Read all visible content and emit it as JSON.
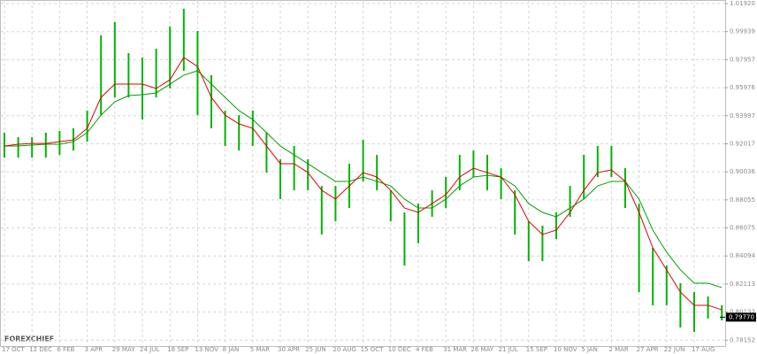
{
  "chart_data": {
    "type": "hilo",
    "watermark": "FOREXCHIEF",
    "categories": [
      "17 OCT",
      null,
      "12 DEC",
      null,
      "6 FEB",
      null,
      "3 APR",
      null,
      "29 MAY",
      null,
      "24 JUL",
      null,
      "18 SEP",
      null,
      "13 NOV",
      null,
      "8 JAN",
      null,
      "5 MAR",
      null,
      "30 APR",
      null,
      "25 JUN",
      null,
      "20 AUG",
      null,
      "15 OCT",
      null,
      "10 DEC",
      null,
      "4 FEB",
      null,
      "31 MAR",
      null,
      "26 MAY",
      null,
      "21 JUL",
      null,
      "15 SEP",
      null,
      "10 NOV",
      null,
      "5 JAN",
      null,
      "2 MAR",
      null,
      "27 APR",
      null,
      "22 JUN",
      null,
      "17 AUG",
      null,
      null
    ],
    "high": [
      0.928,
      0.9248,
      0.9248,
      0.928,
      0.9292,
      0.9311,
      0.9436,
      0.9967,
      1.0061,
      0.9842,
      0.9811,
      0.9873,
      1.003,
      1.0155,
      0.9998,
      0.9686,
      0.9436,
      0.9404,
      0.9436,
      0.928,
      0.9092,
      0.9186,
      0.9092,
      0.8904,
      0.8904,
      0.9061,
      0.9229,
      0.9123,
      0.8873,
      0.8717,
      0.8779,
      0.8873,
      0.8967,
      0.9123,
      0.9154,
      0.9123,
      0.9029,
      0.8873,
      0.8654,
      0.8623,
      0.8717,
      0.8904,
      0.9123,
      0.9186,
      0.9186,
      0.9029,
      0.8779,
      0.8467,
      0.8342,
      0.8217,
      0.8154,
      0.8123,
      0.8061
    ],
    "low": [
      0.9104,
      0.9104,
      0.9104,
      0.9104,
      0.9123,
      0.9154,
      0.9217,
      0.9404,
      0.9529,
      0.9529,
      0.9373,
      0.9529,
      0.9592,
      0.9717,
      0.9404,
      0.9311,
      0.9186,
      0.9154,
      0.9186,
      0.8998,
      0.8811,
      0.8873,
      0.8873,
      0.8561,
      0.8654,
      0.8748,
      0.8936,
      0.8873,
      0.8654,
      0.8342,
      0.8498,
      0.8686,
      0.8748,
      0.8873,
      0.8967,
      0.8873,
      0.8811,
      0.8561,
      0.8373,
      0.8373,
      0.8529,
      0.8686,
      0.8811,
      0.8967,
      0.8967,
      0.8748,
      0.8154,
      0.8061,
      0.8061,
      0.7904,
      0.7873,
      0.7967,
      0.7954
    ],
    "bar_color": "#00b400",
    "ma_fast": {
      "color": "#e00000",
      "values": [
        0.9186,
        0.9198,
        0.9204,
        0.9204,
        0.9217,
        0.9229,
        0.9311,
        0.9529,
        0.9623,
        0.9623,
        0.9623,
        0.9592,
        0.9654,
        0.9811,
        0.9748,
        0.9529,
        0.9404,
        0.9342,
        0.9311,
        0.9186,
        0.9061,
        0.9061,
        0.8998,
        0.8873,
        0.8811,
        0.8904,
        0.8998,
        0.8967,
        0.8873,
        0.8748,
        0.8717,
        0.8779,
        0.8842,
        0.8967,
        0.9029,
        0.8998,
        0.8967,
        0.8842,
        0.8654,
        0.8561,
        0.8592,
        0.8717,
        0.8873,
        0.8998,
        0.9017,
        0.8936,
        0.8717,
        0.8467,
        0.8311,
        0.8154,
        0.8061,
        0.8061,
        0.8029
      ]
    },
    "ma_slow": {
      "color": "#00a000",
      "values": [
        0.9186,
        0.9186,
        0.9192,
        0.9198,
        0.9198,
        0.9217,
        0.928,
        0.9404,
        0.9498,
        0.9542,
        0.9548,
        0.9561,
        0.9623,
        0.9686,
        0.9717,
        0.9623,
        0.9529,
        0.9436,
        0.9373,
        0.928,
        0.9186,
        0.9123,
        0.9061,
        0.8998,
        0.8936,
        0.8936,
        0.8967,
        0.8936,
        0.8904,
        0.8811,
        0.8748,
        0.8748,
        0.8811,
        0.8904,
        0.8967,
        0.8979,
        0.8967,
        0.8904,
        0.8779,
        0.8717,
        0.8686,
        0.8748,
        0.8811,
        0.8904,
        0.8936,
        0.8936,
        0.8811,
        0.8592,
        0.8436,
        0.8311,
        0.8217,
        0.8217,
        0.8186
      ]
    },
    "current_price": {
      "value": 0.7977,
      "label": "0.79770"
    },
    "ylim": [
      0.7767,
      1.0217
    ],
    "yticks": [
      {
        "value": 1.0192,
        "label": "1.01920"
      },
      0.99939,
      0.97957,
      0.95976,
      0.93997,
      0.92017,
      0.90036,
      0.88055,
      0.86075,
      0.84094,
      0.82113,
      0.80132,
      0.78152
    ],
    "grid": true
  }
}
